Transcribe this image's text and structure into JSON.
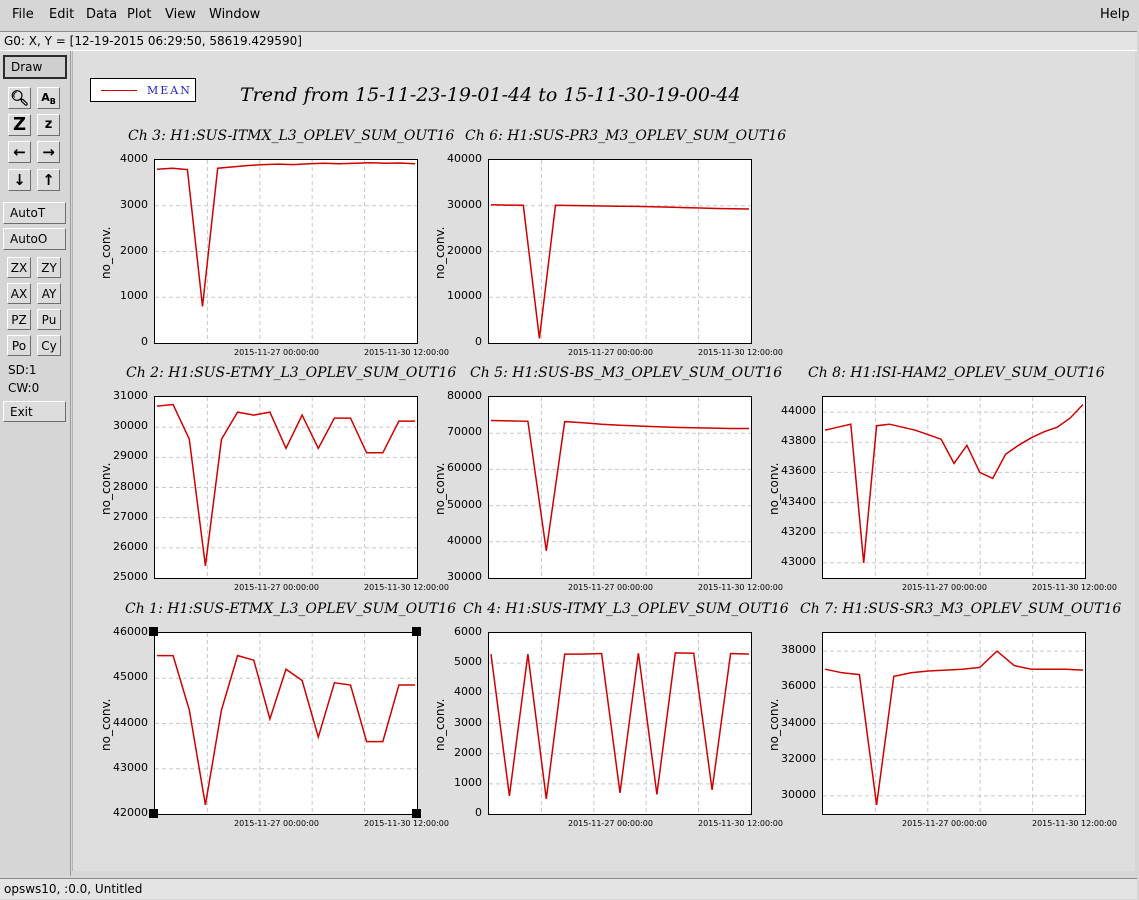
{
  "menu": {
    "file": "File",
    "edit": "Edit",
    "data": "Data",
    "plot": "Plot",
    "view": "View",
    "window": "Window",
    "help": "Help"
  },
  "coord_readout": "G0: X, Y = [12-19-2015 06:29:50, 58619.429590]",
  "toolbar": {
    "draw": "Draw",
    "autot": "AutoT",
    "autoo": "AutoO",
    "zx": "ZX",
    "zy": "ZY",
    "ax": "AX",
    "ay": "AY",
    "pz": "PZ",
    "pu": "Pu",
    "po": "Po",
    "cy": "Cy",
    "sd": "SD:1",
    "cw": "CW:0",
    "exit": "Exit",
    "icons": [
      "magnifier-icon",
      "label-ab-icon",
      "zoom-z-large-icon",
      "zoom-z-small-icon",
      "arrow-left-icon",
      "arrow-right-icon",
      "arrow-down-icon",
      "arrow-up-icon"
    ]
  },
  "legend": {
    "label": "MEAN",
    "color": "#d00000"
  },
  "trend_title": "Trend from 15-11-23-19-01-44 to 15-11-30-19-00-44",
  "status": "opsws10, :0.0, Untitled",
  "chart_data": [
    {
      "type": "line",
      "title": "Ch 3: H1:SUS-ITMX_L3_OPLEV_SUM_OUT16",
      "ylabel": "no_conv.",
      "ylim": [
        0,
        4000
      ],
      "yticks": [
        "0",
        "1000",
        "2000",
        "3000",
        "4000"
      ],
      "xticks": [
        "2015-11-27 00:00:00",
        "2015-11-30 12:00:00"
      ],
      "series": [
        {
          "values": [
            3800,
            3820,
            3790,
            800,
            3820,
            3850,
            3880,
            3900,
            3910,
            3900,
            3920,
            3930,
            3920,
            3930,
            3940,
            3930,
            3935,
            3920
          ]
        }
      ]
    },
    {
      "type": "line",
      "title": "Ch 6: H1:SUS-PR3_M3_OPLEV_SUM_OUT16",
      "ylabel": "no_conv.",
      "ylim": [
        0,
        40000
      ],
      "yticks": [
        "0",
        "10000",
        "20000",
        "30000",
        "40000"
      ],
      "xticks": [
        "2015-11-27 00:00:00",
        "2015-11-30 12:00:00"
      ],
      "series": [
        {
          "values": [
            30200,
            30150,
            30100,
            1000,
            30100,
            30050,
            30000,
            29950,
            29900,
            29850,
            29800,
            29700,
            29600,
            29500,
            29400,
            29350,
            29300
          ]
        }
      ]
    },
    {
      "type": "line",
      "title": "Ch 2: H1:SUS-ETMY_L3_OPLEV_SUM_OUT16",
      "ylabel": "no_conv.",
      "ylim": [
        25000,
        31000
      ],
      "yticks": [
        "25000",
        "26000",
        "27000",
        "28000",
        "29000",
        "30000",
        "31000"
      ],
      "xticks": [
        "2015-11-27 00:00:00",
        "2015-11-30 12:00:00"
      ],
      "series": [
        {
          "values": [
            30700,
            30750,
            29600,
            25400,
            29600,
            30500,
            30400,
            30500,
            29300,
            30400,
            29300,
            30300,
            30300,
            29150,
            29150,
            30200,
            30200
          ]
        }
      ]
    },
    {
      "type": "line",
      "title": "Ch 5: H1:SUS-BS_M3_OPLEV_SUM_OUT16",
      "ylabel": "no_conv.",
      "ylim": [
        30000,
        80000
      ],
      "yticks": [
        "30000",
        "40000",
        "50000",
        "60000",
        "70000",
        "80000"
      ],
      "xticks": [
        "2015-11-27 00:00:00",
        "2015-11-30 12:00:00"
      ],
      "series": [
        {
          "values": [
            73500,
            73400,
            73300,
            37500,
            73200,
            72900,
            72500,
            72200,
            72000,
            71800,
            71600,
            71500,
            71400,
            71300,
            71300
          ]
        }
      ]
    },
    {
      "type": "line",
      "title": "Ch 8: H1:ISI-HAM2_OPLEV_SUM_OUT16",
      "ylabel": "no_conv.",
      "ylim": [
        42900,
        44100
      ],
      "yticks": [
        "43000",
        "43200",
        "43400",
        "43600",
        "43800",
        "44000"
      ],
      "xticks": [
        "2015-11-27 00:00:00",
        "2015-11-30 12:00:00"
      ],
      "series": [
        {
          "values": [
            43880,
            43900,
            43920,
            43000,
            43910,
            43920,
            43900,
            43880,
            43850,
            43820,
            43660,
            43780,
            43600,
            43560,
            43720,
            43780,
            43830,
            43870,
            43900,
            43960,
            44050
          ]
        }
      ]
    },
    {
      "type": "line",
      "title": "Ch 1: H1:SUS-ETMX_L3_OPLEV_SUM_OUT16",
      "ylabel": "no_conv.",
      "ylim": [
        42000,
        46000
      ],
      "yticks": [
        "42000",
        "43000",
        "44000",
        "45000",
        "46000"
      ],
      "xticks": [
        "2015-11-27 00:00:00",
        "2015-11-30 12:00:00"
      ],
      "series": [
        {
          "values": [
            45500,
            45500,
            44300,
            42200,
            44300,
            45500,
            45400,
            44100,
            45200,
            44950,
            43700,
            44900,
            44850,
            43600,
            43600,
            44850,
            44850
          ]
        }
      ]
    },
    {
      "type": "line",
      "title": "Ch 4: H1:SUS-ITMY_L3_OPLEV_SUM_OUT16",
      "ylabel": "no_conv.",
      "ylim": [
        0,
        6000
      ],
      "yticks": [
        "0",
        "1000",
        "2000",
        "3000",
        "4000",
        "5000",
        "6000"
      ],
      "xticks": [
        "2015-11-27 00:00:00",
        "2015-11-30 12:00:00"
      ],
      "series": [
        {
          "values": [
            5300,
            600,
            5300,
            500,
            5300,
            5300,
            5320,
            700,
            5330,
            650,
            5340,
            5330,
            800,
            5320,
            5300
          ]
        }
      ]
    },
    {
      "type": "line",
      "title": "Ch 7: H1:SUS-SR3_M3_OPLEV_SUM_OUT16",
      "ylabel": "no_conv.",
      "ylim": [
        29000,
        39000
      ],
      "yticks": [
        "30000",
        "32000",
        "34000",
        "36000",
        "38000"
      ],
      "xticks": [
        "2015-11-27 00:00:00",
        "2015-11-30 12:00:00"
      ],
      "series": [
        {
          "values": [
            37000,
            36800,
            36700,
            29500,
            36600,
            36800,
            36900,
            36950,
            37000,
            37100,
            38000,
            37200,
            37000,
            37000,
            37000,
            36950
          ]
        }
      ]
    }
  ]
}
